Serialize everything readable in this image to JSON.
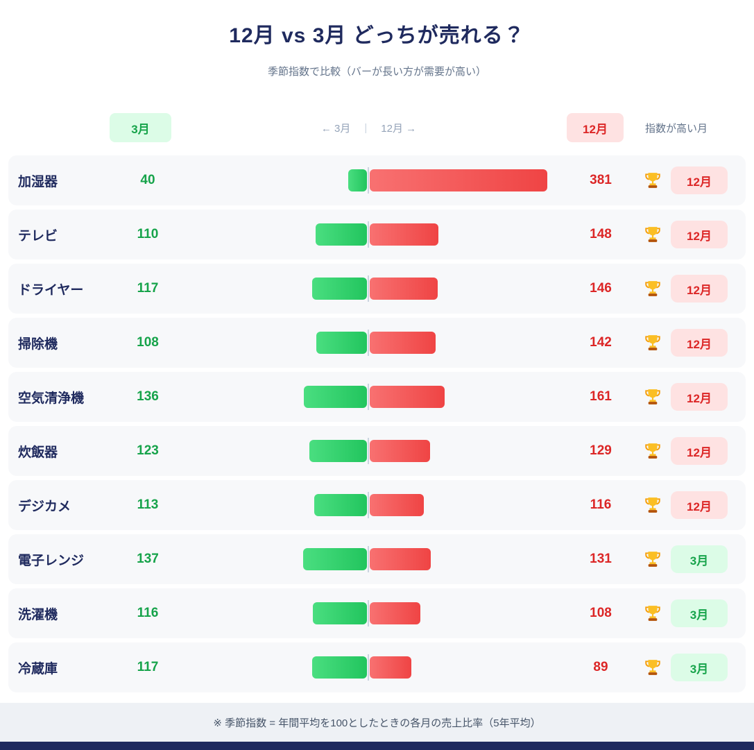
{
  "header": {
    "title": "12月 vs 3月 どっちが売れる？",
    "subtitle": "季節指数で比較（バーが長い方が需要が高い）"
  },
  "legend": {
    "march_label": "3月",
    "axis_left": "← 3月",
    "axis_divider": "|",
    "axis_right": "12月 →",
    "december_label": "12月",
    "note": "指数が高い月"
  },
  "chart_data": {
    "type": "bar",
    "variant": "diverging-horizontal",
    "title": "12月 vs 3月 どっちが売れる？",
    "subtitle": "季節指数で比較（バーが長い方が需要が高い）",
    "categories": [
      "加湿器",
      "テレビ",
      "ドライヤー",
      "掃除機",
      "空気清浄機",
      "炊飯器",
      "デジカメ",
      "電子レンジ",
      "洗濯機",
      "冷蔵庫"
    ],
    "series": [
      {
        "name": "3月",
        "color": "#22c55e",
        "values": [
          40,
          110,
          117,
          108,
          136,
          123,
          113,
          137,
          116,
          117
        ]
      },
      {
        "name": "12月",
        "color": "#ef4444",
        "values": [
          381,
          148,
          146,
          142,
          161,
          129,
          116,
          131,
          108,
          89
        ]
      }
    ],
    "rows": [
      {
        "label": "加湿器",
        "march": 40,
        "december": 381,
        "winner": "12月"
      },
      {
        "label": "テレビ",
        "march": 110,
        "december": 148,
        "winner": "12月"
      },
      {
        "label": "ドライヤー",
        "march": 117,
        "december": 146,
        "winner": "12月"
      },
      {
        "label": "掃除機",
        "march": 108,
        "december": 142,
        "winner": "12月"
      },
      {
        "label": "空気清浄機",
        "march": 136,
        "december": 161,
        "winner": "12月"
      },
      {
        "label": "炊飯器",
        "march": 123,
        "december": 129,
        "winner": "12月"
      },
      {
        "label": "デジカメ",
        "march": 113,
        "december": 116,
        "winner": "12月"
      },
      {
        "label": "電子レンジ",
        "march": 137,
        "december": 131,
        "winner": "3月"
      },
      {
        "label": "洗濯機",
        "march": 116,
        "december": 108,
        "winner": "3月"
      },
      {
        "label": "冷蔵庫",
        "march": 117,
        "december": 89,
        "winner": "3月"
      }
    ],
    "axis": {
      "center": "平均=100基準の中心線",
      "legend_position": "top"
    },
    "colors": {
      "march_text": "#16a34a",
      "december_text": "#dc2626",
      "march_badge_bg": "#dcfce7",
      "december_badge_bg": "#fee2e2",
      "title_navy": "#1f2a5e"
    }
  },
  "footer": {
    "note": "※ 季節指数 = 年間平均を100としたときの各月の売上比率（5年平均）"
  }
}
